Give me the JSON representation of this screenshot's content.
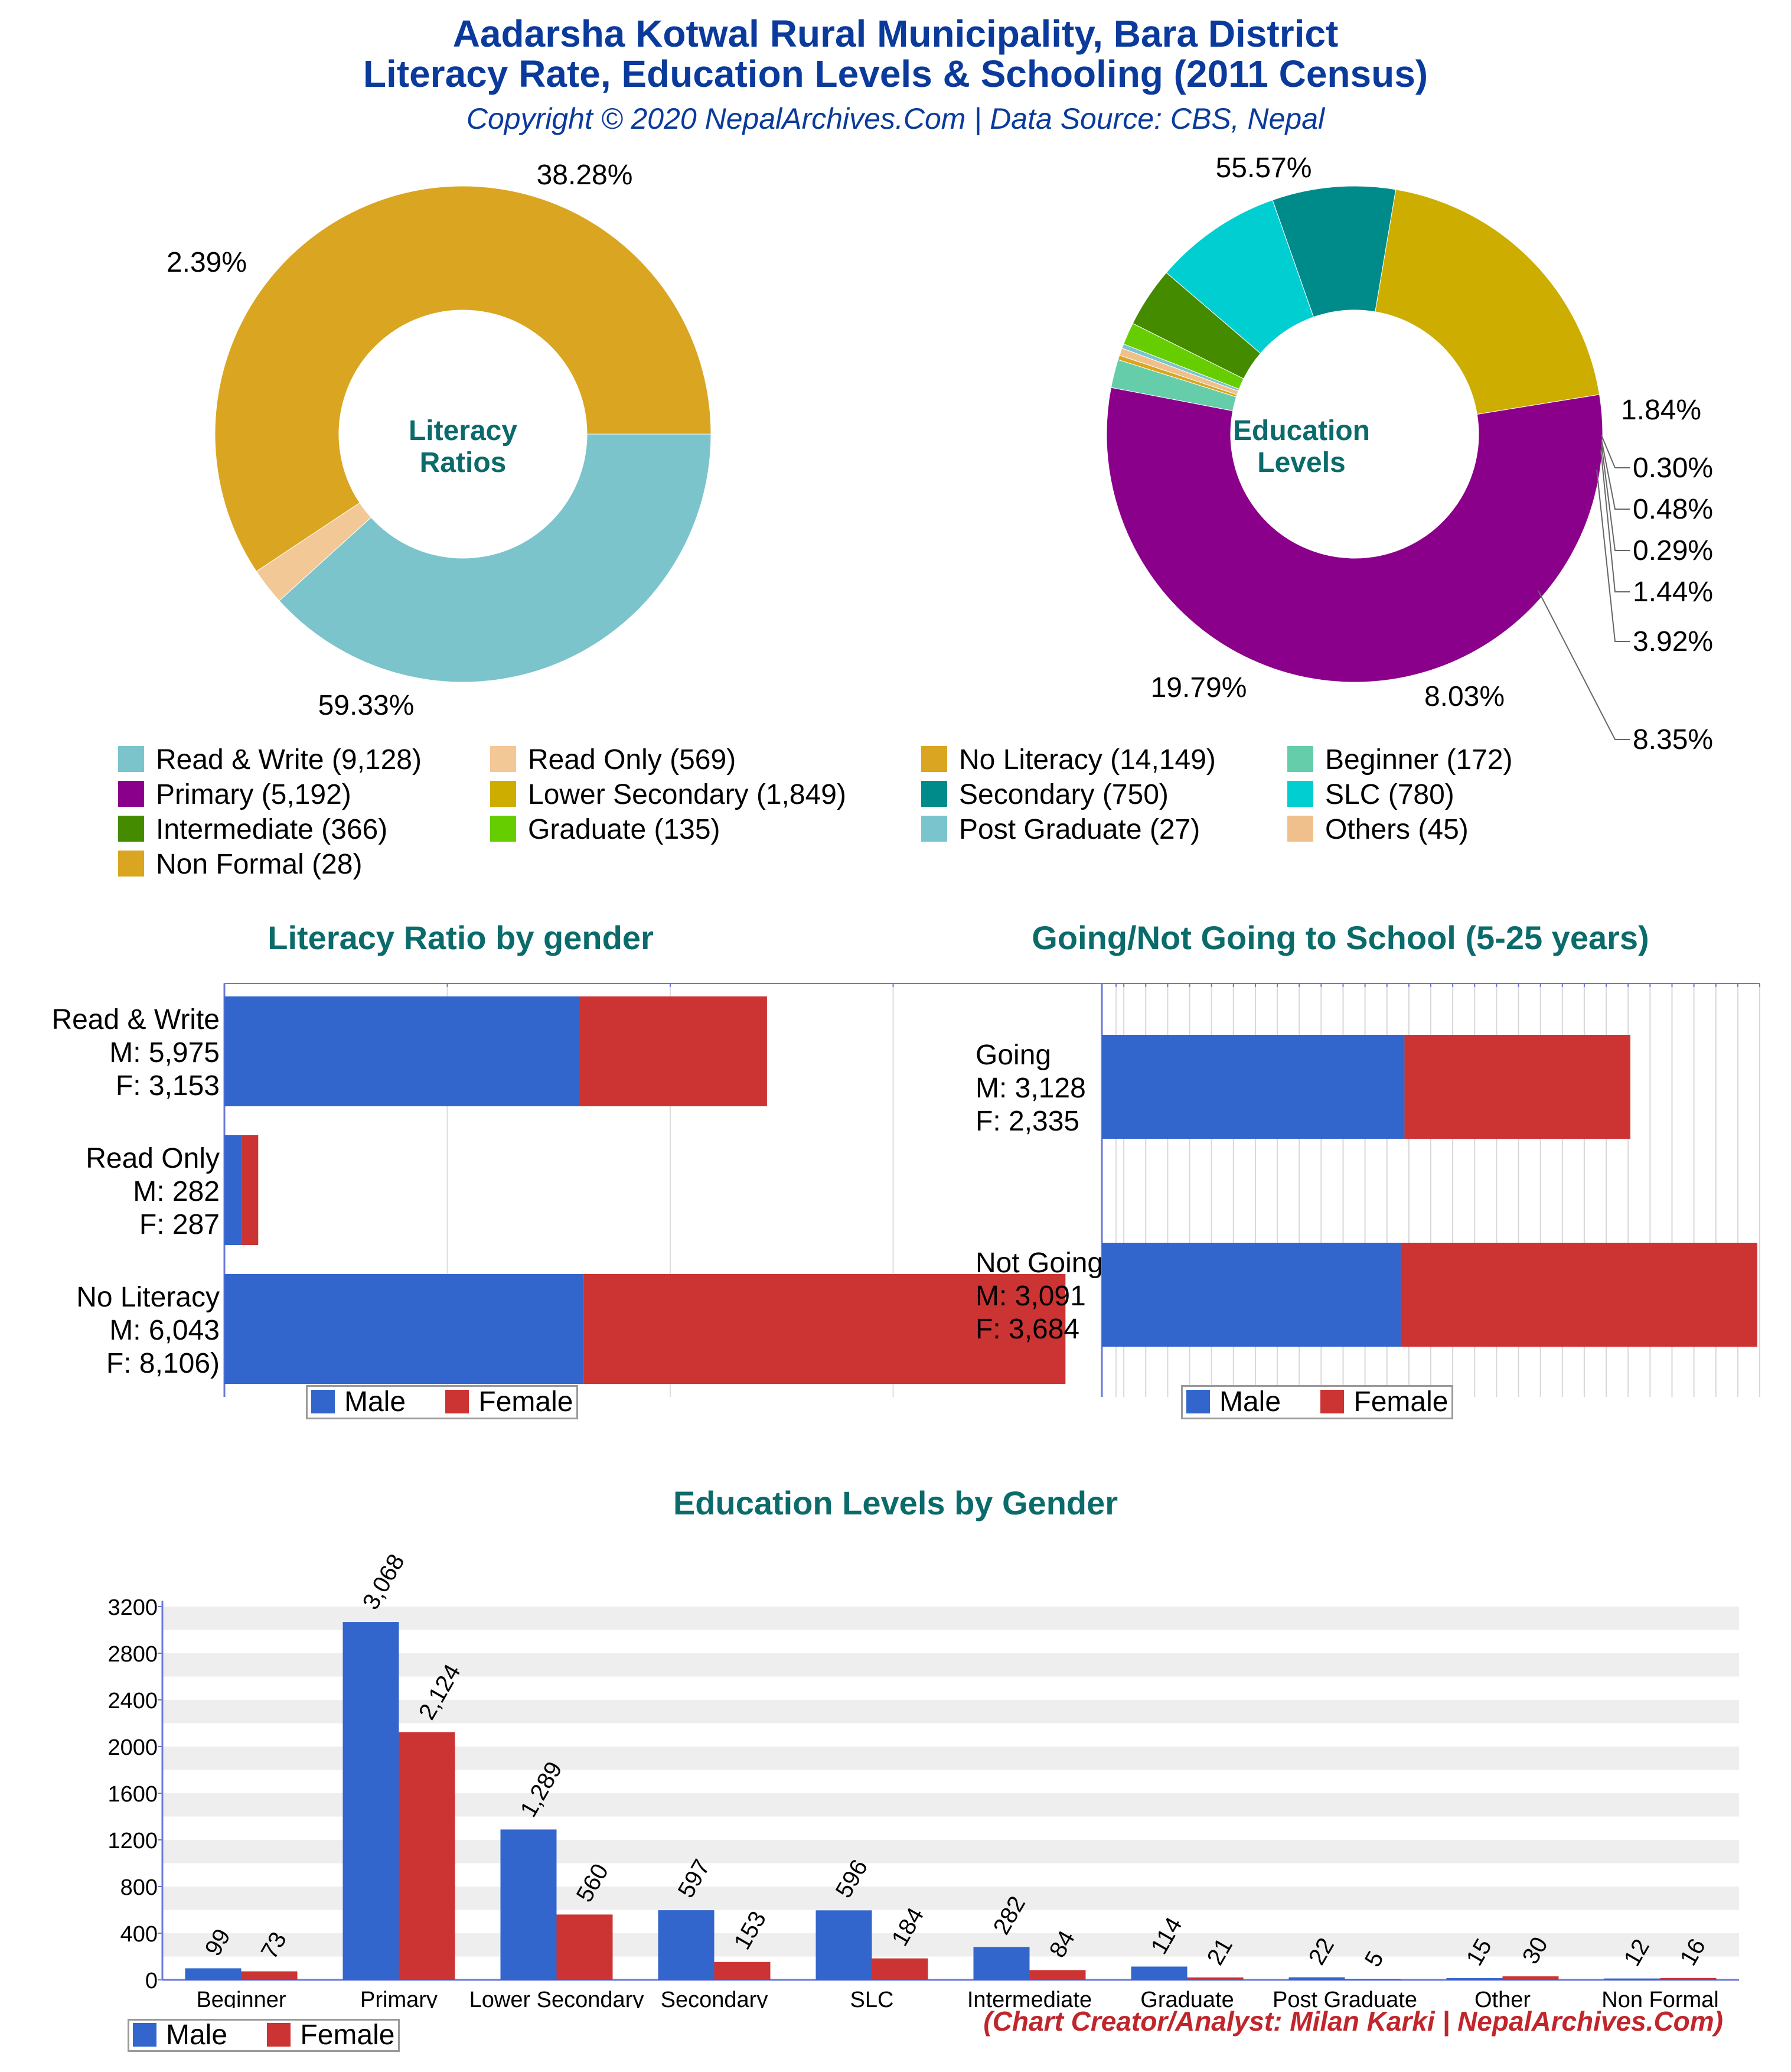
{
  "header": {
    "title_line1": "Aadarsha Kotwal Rural Municipality, Bara District",
    "title_line2": "Literacy Rate, Education Levels & Schooling (2011 Census)",
    "subtitle": "Copyright © 2020 NepalArchives.Com | Data Source: CBS, Nepal"
  },
  "footer": {
    "credit": "(Chart Creator/Analyst: Milan Karki | NepalArchives.Com)"
  },
  "legend_common": {
    "male": "Male",
    "female": "Female"
  },
  "colors": {
    "male": "#3366cc",
    "female": "#cc3333",
    "read_write": "#7bc4cc",
    "read_only": "#f2c896",
    "no_literacy": "#daa520",
    "beginner": "#66cdaa",
    "primary": "#8b008b",
    "lower_secondary": "#ccad00",
    "secondary": "#008b8b",
    "slc": "#00ced1",
    "intermediate": "#458b00",
    "graduate": "#66cd00",
    "post_graduate": "#7ac5cd",
    "others": "#f0c08c",
    "non_formal": "#daa520"
  },
  "legend_items": [
    {
      "label": "Read & Write (9,128)",
      "color": "#7bc4cc"
    },
    {
      "label": "Read Only (569)",
      "color": "#f2c896"
    },
    {
      "label": "No Literacy (14,149)",
      "color": "#daa520"
    },
    {
      "label": "Beginner (172)",
      "color": "#66cdaa"
    },
    {
      "label": "Primary (5,192)",
      "color": "#8b008b"
    },
    {
      "label": "Lower Secondary (1,849)",
      "color": "#ccad00"
    },
    {
      "label": "Secondary (750)",
      "color": "#008b8b"
    },
    {
      "label": "SLC (780)",
      "color": "#00ced1"
    },
    {
      "label": "Intermediate (366)",
      "color": "#458b00"
    },
    {
      "label": "Graduate (135)",
      "color": "#66cd00"
    },
    {
      "label": "Post Graduate (27)",
      "color": "#7ac5cd"
    },
    {
      "label": "Others (45)",
      "color": "#f0c08c"
    },
    {
      "label": "Non Formal (28)",
      "color": "#daa520"
    }
  ],
  "chart_data": [
    {
      "type": "pie",
      "title": "Literacy Ratios",
      "categories": [
        "Read & Write",
        "Read Only",
        "No Literacy"
      ],
      "values": [
        9128,
        569,
        14149
      ],
      "percent_labels": [
        "38.28%",
        "2.39%",
        "59.33%"
      ],
      "colors": [
        "#7bc4cc",
        "#f2c896",
        "#daa520"
      ]
    },
    {
      "type": "pie",
      "title": "Education Levels",
      "categories": [
        "Primary",
        "Beginner",
        "Non Formal",
        "Others",
        "Post Graduate",
        "Graduate",
        "Intermediate",
        "SLC",
        "Secondary",
        "Lower Secondary"
      ],
      "values": [
        5192,
        172,
        28,
        45,
        27,
        135,
        366,
        780,
        750,
        1849
      ],
      "percent_labels": [
        "55.57%",
        "1.84%",
        "0.30%",
        "0.48%",
        "0.29%",
        "1.44%",
        "3.92%",
        "8.35%",
        "8.03%",
        "19.79%"
      ],
      "colors": [
        "#8b008b",
        "#66cdaa",
        "#daa520",
        "#f0c08c",
        "#7ac5cd",
        "#66cd00",
        "#458b00",
        "#00ced1",
        "#008b8b",
        "#ccad00"
      ]
    },
    {
      "type": "bar",
      "orientation": "horizontal-stacked",
      "title": "Literacy Ratio by gender",
      "categories": [
        "Read & Write",
        "Read Only",
        "No Literacy"
      ],
      "category_labels": [
        [
          "Read & Write",
          "M: 5,975",
          "F: 3,153"
        ],
        [
          "Read Only",
          "M: 282",
          "F: 287"
        ],
        [
          "No Literacy",
          "M: 6,043",
          "F: 8,106)"
        ]
      ],
      "series": [
        {
          "name": "Male",
          "values": [
            5975,
            282,
            6043
          ]
        },
        {
          "name": "Female",
          "values": [
            3153,
            287,
            8106
          ]
        }
      ],
      "xlim": [
        0,
        15000
      ],
      "legend": "bottom"
    },
    {
      "type": "bar",
      "orientation": "horizontal-stacked",
      "title": "Going/Not Going to School (5-25 years)",
      "categories": [
        "Going",
        "Not Going"
      ],
      "category_labels": [
        [
          "Going",
          "M: 3,128",
          "F: 2,335"
        ],
        [
          "Not Going",
          "M: 3,091",
          "F: 3,684"
        ]
      ],
      "series": [
        {
          "name": "Male",
          "values": [
            3128,
            3091
          ]
        },
        {
          "name": "Female",
          "values": [
            2335,
            3684
          ]
        }
      ],
      "xlim": [
        0,
        6800
      ],
      "legend": "bottom"
    },
    {
      "type": "bar",
      "orientation": "vertical-grouped",
      "title": "Education Levels by Gender",
      "categories": [
        "Beginner",
        "Primary",
        "Lower Secondary",
        "Secondary",
        "SLC",
        "Intermediate",
        "Graduate",
        "Post Graduate",
        "Other",
        "Non Formal"
      ],
      "series": [
        {
          "name": "Male",
          "values": [
            99,
            3068,
            1289,
            597,
            596,
            282,
            114,
            22,
            15,
            12
          ],
          "labels": [
            "99",
            "3,068",
            "1,289",
            "597",
            "596",
            "282",
            "114",
            "22",
            "15",
            "12"
          ]
        },
        {
          "name": "Female",
          "values": [
            73,
            2124,
            560,
            153,
            184,
            84,
            21,
            5,
            30,
            16
          ],
          "labels": [
            "73",
            "2,124",
            "560",
            "153",
            "184",
            "84",
            "21",
            "5",
            "30",
            "16"
          ]
        }
      ],
      "yticks": [
        "0",
        "400",
        "800",
        "1200",
        "1600",
        "2000",
        "2400",
        "2800",
        "3200"
      ],
      "ylim": [
        0,
        3200
      ],
      "legend": "bottom-left"
    }
  ]
}
